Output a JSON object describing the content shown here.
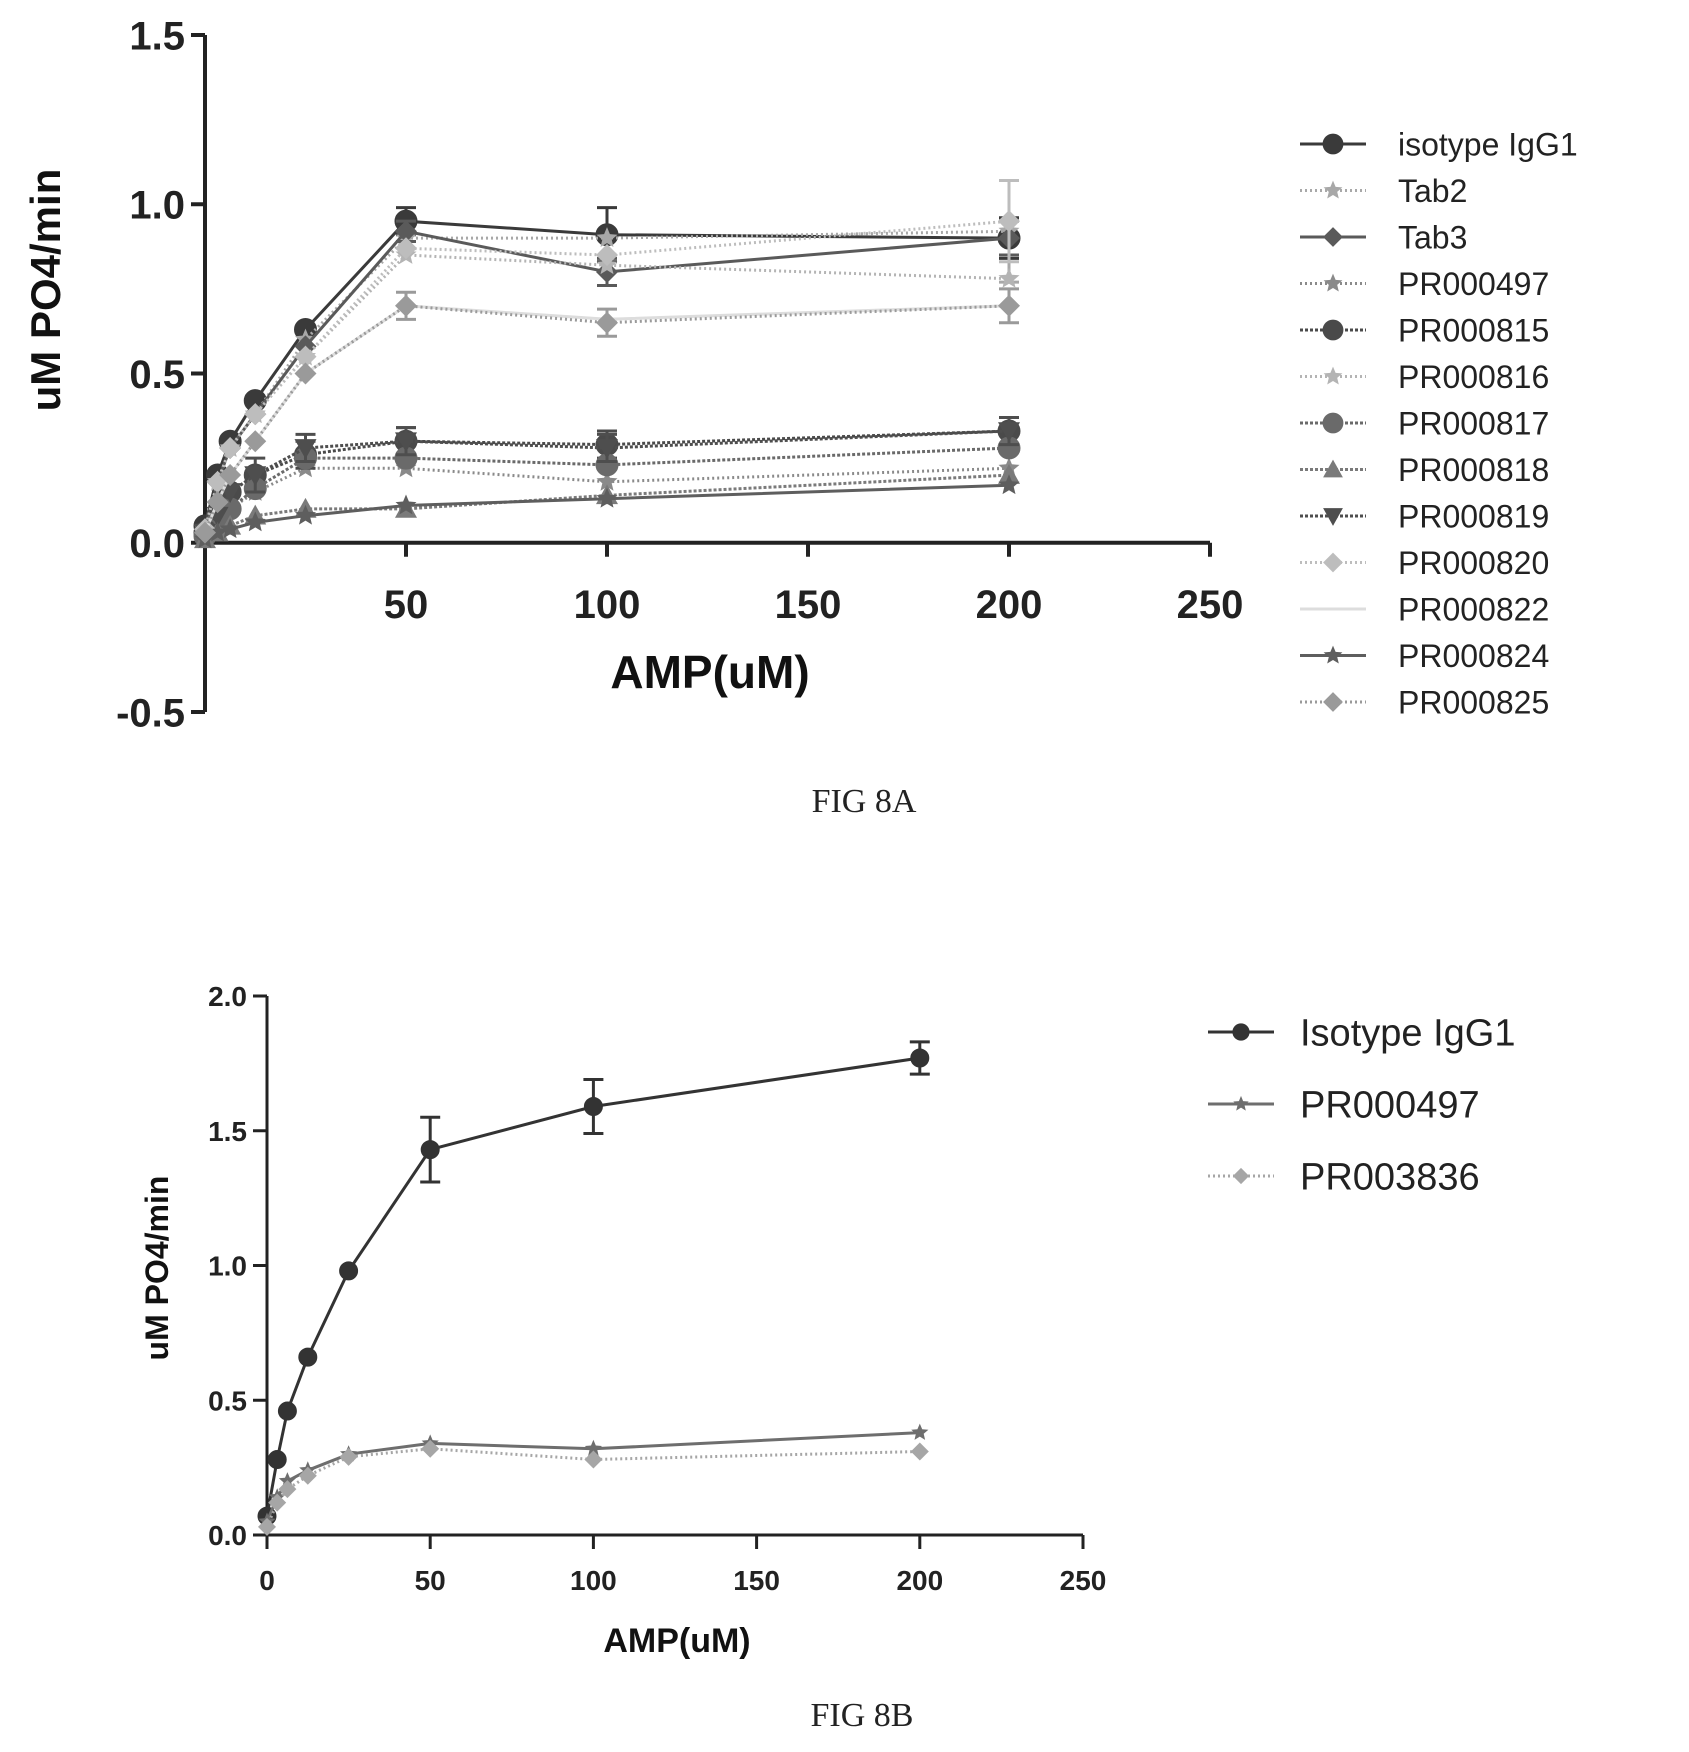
{
  "chart_data": [
    {
      "type": "line",
      "caption": "FIG 8A",
      "xlabel": "AMP(uM)",
      "ylabel": "uM PO4/min",
      "xlim": [
        0,
        250
      ],
      "ylim": [
        -0.5,
        1.5
      ],
      "xticks": [
        50,
        100,
        150,
        200,
        250
      ],
      "xtick_labels": [
        "50",
        "100",
        "150",
        "200",
        "250"
      ],
      "yticks": [
        -0.5,
        0.0,
        0.5,
        1.0,
        1.5
      ],
      "ytick_labels": [
        "-0.5",
        "0.0",
        "0.5",
        "1.0",
        "1.5"
      ],
      "grid": false,
      "legend_position": "right",
      "x": [
        0,
        3.125,
        6.25,
        12.5,
        25,
        50,
        100,
        200
      ],
      "series": [
        {
          "name": "isotype IgG1",
          "marker": "circle",
          "color": "#3a3a3a",
          "dash": "",
          "values": [
            0.05,
            0.2,
            0.3,
            0.42,
            0.63,
            0.95,
            0.91,
            0.9
          ],
          "errors": [
            0,
            0,
            0,
            0,
            0,
            0.04,
            0.08,
            0.06
          ]
        },
        {
          "name": "Tab2",
          "marker": "star",
          "color": "#a8a8a8",
          "dash": "2,3",
          "values": [
            0.04,
            0.18,
            0.28,
            0.38,
            0.6,
            0.9,
            0.9,
            0.92
          ],
          "errors": [
            0,
            0,
            0,
            0,
            0,
            0,
            0,
            0.15
          ]
        },
        {
          "name": "Tab3",
          "marker": "diamond",
          "color": "#5a5a5a",
          "dash": "",
          "values": [
            0.04,
            0.18,
            0.28,
            0.38,
            0.58,
            0.92,
            0.8,
            0.9
          ],
          "errors": [
            0,
            0,
            0,
            0,
            0,
            0.03,
            0.04,
            0.05
          ]
        },
        {
          "name": "PR000497",
          "marker": "star",
          "color": "#8a8a8a",
          "dash": "2,3",
          "values": [
            0.02,
            0.06,
            0.1,
            0.15,
            0.22,
            0.22,
            0.18,
            0.22
          ],
          "errors": [
            0,
            0,
            0,
            0,
            0,
            0,
            0,
            0
          ]
        },
        {
          "name": "PR000815",
          "marker": "circle",
          "color": "#4a4a4a",
          "dash": "3,2",
          "values": [
            0.03,
            0.08,
            0.15,
            0.2,
            0.26,
            0.3,
            0.29,
            0.33
          ],
          "errors": [
            0,
            0,
            0,
            0,
            0.04,
            0.04,
            0.04,
            0.04
          ]
        },
        {
          "name": "PR000816",
          "marker": "star",
          "color": "#b4b4b4",
          "dash": "2,3",
          "values": [
            0.04,
            0.18,
            0.28,
            0.38,
            0.55,
            0.85,
            0.82,
            0.78
          ],
          "errors": [
            0,
            0,
            0,
            0,
            0,
            0,
            0,
            0
          ]
        },
        {
          "name": "PR000817",
          "marker": "circle",
          "color": "#6a6a6a",
          "dash": "3,2",
          "values": [
            0.02,
            0.06,
            0.1,
            0.16,
            0.25,
            0.25,
            0.23,
            0.28
          ],
          "errors": [
            0,
            0,
            0,
            0,
            0,
            0,
            0,
            0
          ]
        },
        {
          "name": "PR000818",
          "marker": "triangle",
          "color": "#7a7a7a",
          "dash": "3,2",
          "values": [
            0.01,
            0.03,
            0.05,
            0.08,
            0.1,
            0.1,
            0.14,
            0.2
          ],
          "errors": [
            0,
            0,
            0,
            0,
            0,
            0,
            0,
            0
          ]
        },
        {
          "name": "PR000819",
          "marker": "tri-down",
          "color": "#4e4e4e",
          "dash": "3,2",
          "values": [
            0.03,
            0.08,
            0.15,
            0.2,
            0.28,
            0.3,
            0.28,
            0.33
          ],
          "errors": [
            0,
            0,
            0,
            0.05,
            0.04,
            0.04,
            0.04,
            0.04
          ]
        },
        {
          "name": "PR000820",
          "marker": "diamond",
          "color": "#bdbdbd",
          "dash": "2,3",
          "values": [
            0.04,
            0.18,
            0.28,
            0.38,
            0.55,
            0.87,
            0.85,
            0.95
          ],
          "errors": [
            0,
            0,
            0,
            0,
            0,
            0,
            0,
            0.12
          ]
        },
        {
          "name": "PR000822",
          "marker": "none",
          "color": "#dddddd",
          "dash": "",
          "values": [
            0.03,
            0.12,
            0.2,
            0.3,
            0.5,
            0.7,
            0.66,
            0.7
          ],
          "errors": [
            0,
            0,
            0,
            0,
            0,
            0,
            0,
            0
          ]
        },
        {
          "name": "PR000824",
          "marker": "star",
          "color": "#5e5e5e",
          "dash": "",
          "values": [
            0.01,
            0.03,
            0.04,
            0.06,
            0.08,
            0.11,
            0.13,
            0.17
          ],
          "errors": [
            0,
            0,
            0,
            0,
            0,
            0,
            0,
            0
          ]
        },
        {
          "name": "PR000825",
          "marker": "diamond",
          "color": "#9a9a9a",
          "dash": "2,3",
          "values": [
            0.03,
            0.12,
            0.2,
            0.3,
            0.5,
            0.7,
            0.65,
            0.7
          ],
          "errors": [
            0,
            0,
            0,
            0,
            0,
            0.04,
            0.04,
            0.05
          ]
        }
      ]
    },
    {
      "type": "line",
      "caption": "FIG 8B",
      "xlabel": "AMP(uM)",
      "ylabel": "uM PO4/min",
      "xlim": [
        0,
        250
      ],
      "ylim": [
        0.0,
        2.0
      ],
      "xticks": [
        0,
        50,
        100,
        150,
        200,
        250
      ],
      "xtick_labels": [
        "0",
        "50",
        "100",
        "150",
        "200",
        "250"
      ],
      "yticks": [
        0.0,
        0.5,
        1.0,
        1.5,
        2.0
      ],
      "ytick_labels": [
        "0.0",
        "0.5",
        "1.0",
        "1.5",
        "2.0"
      ],
      "grid": false,
      "legend_position": "right",
      "x": [
        0,
        3.125,
        6.25,
        12.5,
        25,
        50,
        100,
        200
      ],
      "series": [
        {
          "name": "Isotype IgG1",
          "marker": "circle",
          "color": "#333333",
          "dash": "",
          "values": [
            0.07,
            0.28,
            0.46,
            0.66,
            0.98,
            1.43,
            1.59,
            1.77
          ],
          "errors": [
            0,
            0,
            0,
            0,
            0,
            0.12,
            0.1,
            0.06
          ]
        },
        {
          "name": "PR000497",
          "marker": "star",
          "color": "#6e6e6e",
          "dash": "",
          "values": [
            0.05,
            0.14,
            0.2,
            0.24,
            0.3,
            0.34,
            0.32,
            0.38
          ],
          "errors": [
            0,
            0,
            0,
            0,
            0,
            0,
            0,
            0
          ]
        },
        {
          "name": "PR003836",
          "marker": "diamond",
          "color": "#a6a6a6",
          "dash": "2,3",
          "values": [
            0.03,
            0.12,
            0.17,
            0.22,
            0.29,
            0.32,
            0.28,
            0.31
          ],
          "errors": [
            0,
            0,
            0,
            0,
            0,
            0,
            0,
            0
          ]
        }
      ]
    }
  ]
}
